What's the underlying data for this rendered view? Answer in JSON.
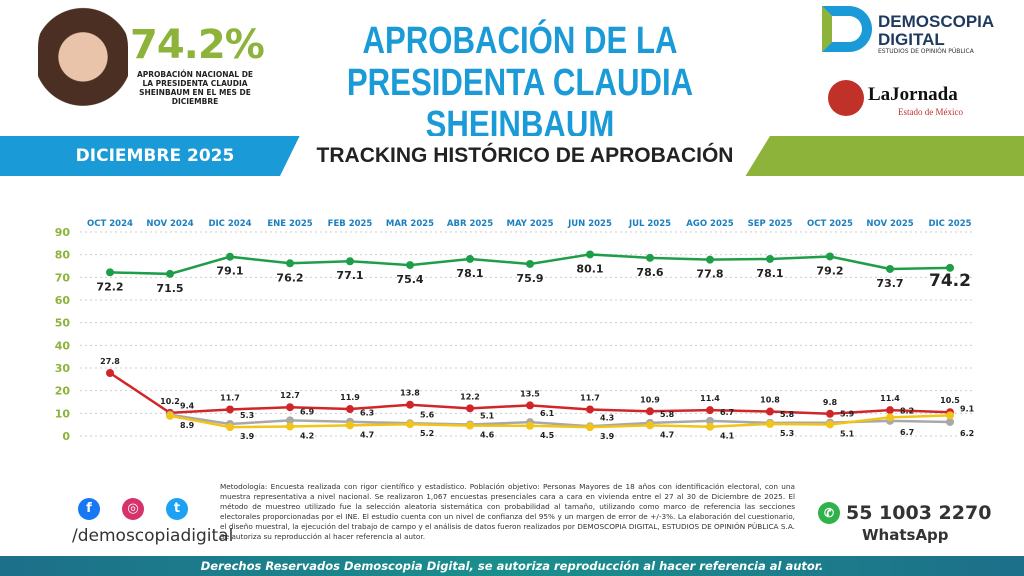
{
  "header": {
    "approval_value": "74.2%",
    "approval_caption": "APROBACIÓN NACIONAL DE LA PRESIDENTA CLAUDIA SHEINBAUM EN EL MES DE DICIEMBRE",
    "title_line1": "APROBACIÓN DE LA",
    "title_line2": "PRESIDENTA CLAUDIA SHEINBAUM",
    "logo": {
      "line1": "DEMOSCOPIA",
      "line2": "DIGITAL",
      "tagline": "ESTUDIOS DE OPINIÓN PÚBLICA"
    },
    "partner": {
      "name": "LaJornada",
      "subtitle": "Estado de México"
    }
  },
  "band": {
    "month": "DICIEMBRE 2025",
    "subtitle": "TRACKING HISTÓRICO DE APROBACIÓN"
  },
  "chart_data": {
    "type": "line",
    "categories": [
      "OCT 2024",
      "NOV 2024",
      "DIC 2024",
      "ENE 2025",
      "FEB 2025",
      "MAR 2025",
      "ABR 2025",
      "MAY 2025",
      "JUN 2025",
      "JUL 2025",
      "AGO 2025",
      "SEP 2025",
      "OCT 2025",
      "NOV 2025",
      "DIC 2025"
    ],
    "ylim": [
      0,
      90
    ],
    "yticks": [
      0,
      10,
      20,
      30,
      40,
      50,
      60,
      70,
      80,
      90
    ],
    "grid": true,
    "series": [
      {
        "color": "#1e9e48",
        "values": [
          72.2,
          71.5,
          79.1,
          76.2,
          77.1,
          75.4,
          78.1,
          75.9,
          80.1,
          78.6,
          77.8,
          78.1,
          79.2,
          73.7,
          74.2
        ]
      },
      {
        "color": "#d0262a",
        "values": [
          27.8,
          10.2,
          11.7,
          12.7,
          11.9,
          13.8,
          12.2,
          13.5,
          11.7,
          10.9,
          11.4,
          10.8,
          9.8,
          11.4,
          10.5
        ]
      },
      {
        "color": "#a8a8a8",
        "values": [
          null,
          9.4,
          5.3,
          6.9,
          6.3,
          5.6,
          5.1,
          6.1,
          4.3,
          5.8,
          6.7,
          5.8,
          5.9,
          6.7,
          6.2
        ]
      },
      {
        "color": "#f0c419",
        "values": [
          null,
          8.9,
          3.9,
          4.2,
          4.7,
          5.2,
          4.6,
          4.5,
          3.9,
          4.7,
          4.1,
          5.3,
          5.1,
          8.2,
          9.1
        ]
      }
    ]
  },
  "methodology": "Metodología: Encuesta realizada con rigor científico y estadístico. Población objetivo: Personas Mayores de 18 años con identificación electoral, con una muestra representativa a nivel nacional. Se realizaron 1,067 encuestas presenciales cara a cara en vivienda entre el 27 al 30 de Diciembre de 2025. El método de muestreo utilizado fue la selección aleatoria sistemática con probabilidad al tamaño, utilizando como marco de referencia las secciones electorales proporcionadas por el INE. El estudio cuenta con un nivel de confianza del 95% y un margen de error de +/-3%. La elaboración del cuestionario, el diseño muestral, la ejecución del trabajo de campo y el análisis de datos fueron realizados por DEMOSCOPIA DIGITAL, ESTUDIOS DE OPINIÓN PÚBLICA S.A. Se autoriza su reproducción al hacer referencia al autor.",
  "social": {
    "icons": [
      "facebook-icon",
      "instagram-icon",
      "twitter-icon"
    ],
    "handle": "/demoscopiadigital"
  },
  "contact": {
    "phone": "55 1003 2270",
    "label": "WhatsApp"
  },
  "footer": "Derechos Reservados Demoscopia Digital, se autoriza reproducción al hacer referencia al autor."
}
